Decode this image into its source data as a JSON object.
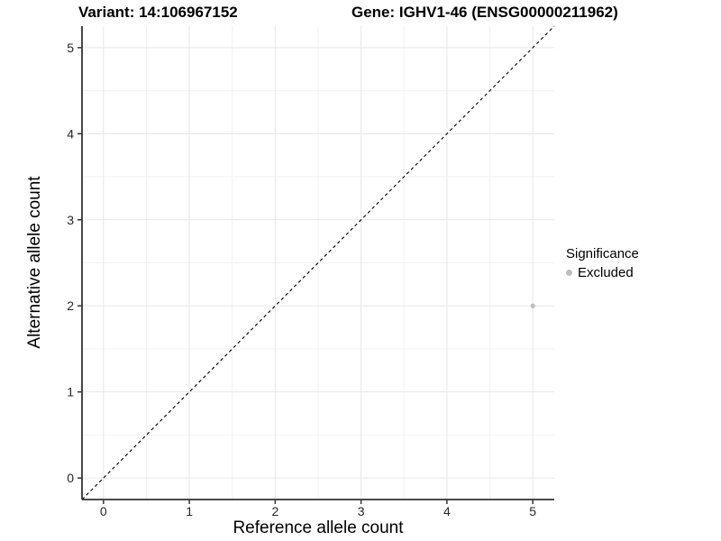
{
  "header": {
    "variant_title": "Variant: 14:106967152",
    "gene_title": "Gene: IGHV1-46 (ENSG00000211962)"
  },
  "legend": {
    "title": "Significance",
    "entries": [
      {
        "label": "Excluded",
        "color": "#bebebe"
      }
    ]
  },
  "colors": {
    "background": "#ffffff",
    "point": "#bebebe",
    "grid_major": "#e7e7e7",
    "grid_minor": "#f2f2f2",
    "axis_line": "#333333",
    "tick_label": "#262626",
    "identity_line": "#000000"
  },
  "chart_data": {
    "type": "scatter",
    "title": "Variant: 14:106967152    Gene: IGHV1-46 (ENSG00000211962)",
    "xlabel": "Reference allele count",
    "ylabel": "Alternative allele count",
    "xlim": [
      -0.25,
      5.25
    ],
    "ylim": [
      -0.25,
      5.25
    ],
    "x_ticks": [
      0,
      1,
      2,
      3,
      4,
      5
    ],
    "y_ticks": [
      0,
      1,
      2,
      3,
      4,
      5
    ],
    "grid": true,
    "legend_position": "right",
    "series": [
      {
        "name": "Excluded",
        "color": "#bebebe",
        "points": [
          {
            "x": 5,
            "y": 2
          }
        ]
      }
    ],
    "reference_line": {
      "type": "identity",
      "style": "dashed",
      "from": [
        -0.25,
        -0.25
      ],
      "to": [
        5.25,
        5.25
      ]
    }
  }
}
